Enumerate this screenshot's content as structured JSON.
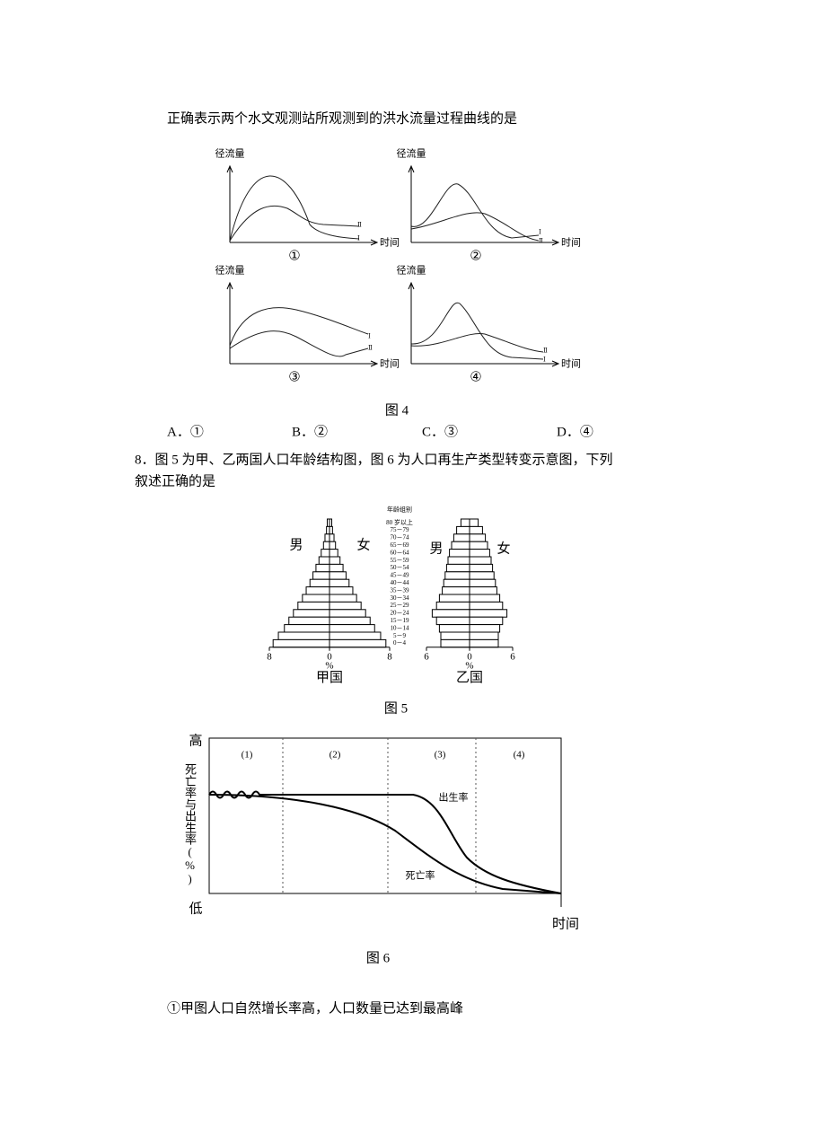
{
  "question7": {
    "stem": "正确表示两个水文观测站所观测到的洪水流量过程曲线的是",
    "figure4": {
      "graphs": [
        {
          "y_label": "径流量",
          "x_label": "时间",
          "curve_labels": [
            "Ⅱ",
            "Ⅰ"
          ],
          "caption": "①"
        },
        {
          "y_label": "径流量",
          "x_label": "时间",
          "curve_labels": [
            "Ⅰ",
            "Ⅱ"
          ],
          "caption": "②"
        },
        {
          "y_label": "径流量",
          "x_label": "时间",
          "curve_labels": [
            "Ⅰ",
            "Ⅱ"
          ],
          "caption": "③"
        },
        {
          "y_label": "径流量",
          "x_label": "时间",
          "curve_labels": [
            "Ⅱ",
            "Ⅰ"
          ],
          "caption": "④"
        }
      ],
      "caption": "图 4"
    },
    "options": [
      "A．①",
      "B．②",
      "C．③",
      "D．④"
    ]
  },
  "question8": {
    "stem_lines": [
      "8．图 5 为甲、乙两国人口年龄结构图，图 6 为人口再生产类型转变示意图，下列",
      "叙述正确的是"
    ],
    "figure5": {
      "age_header": "年龄组别",
      "age_groups": [
        "80 岁以上",
        "75－79",
        "70－74",
        "65－69",
        "60－64",
        "55－59",
        "50－54",
        "45－49",
        "40－44",
        "35－39",
        "30－34",
        "25－29",
        "20－24",
        "15－19",
        "10－14",
        "5－9",
        "0－4"
      ],
      "pyramids": [
        {
          "name": "甲国",
          "male_label": "男",
          "female_label": "女",
          "xticks": [
            8,
            0,
            8
          ],
          "axis_unit": "%",
          "male": [
            0.3,
            0.4,
            0.6,
            0.8,
            1.1,
            1.4,
            1.8,
            2.2,
            2.6,
            3.1,
            3.6,
            4.2,
            4.8,
            5.4,
            6.0,
            6.8,
            7.5
          ],
          "female": [
            0.3,
            0.4,
            0.6,
            0.8,
            1.1,
            1.4,
            1.8,
            2.2,
            2.6,
            3.1,
            3.6,
            4.2,
            4.8,
            5.4,
            6.0,
            6.8,
            7.5
          ]
        },
        {
          "name": "乙国",
          "male_label": "男",
          "female_label": "女",
          "xticks": [
            6,
            0,
            6
          ],
          "axis_unit": "%",
          "male": [
            1.2,
            1.8,
            2.2,
            2.5,
            2.8,
            3.0,
            3.2,
            3.4,
            3.6,
            3.8,
            4.2,
            4.6,
            5.2,
            4.6,
            4.2,
            4.0,
            4.0
          ],
          "female": [
            1.2,
            1.8,
            2.2,
            2.5,
            2.8,
            3.0,
            3.2,
            3.4,
            3.6,
            3.8,
            4.2,
            4.6,
            5.2,
            4.6,
            4.2,
            4.0,
            4.0
          ]
        }
      ],
      "caption": "图 5"
    },
    "figure6": {
      "y_label": "死亡率与出生率(%)",
      "y_high": "高",
      "y_low": "低",
      "x_label": "时间",
      "stages": [
        "(1)",
        "(2)",
        "(3)",
        "(4)"
      ],
      "birth_label": "出生率",
      "death_label": "死亡率",
      "caption": "图 6"
    },
    "statement_1": "①甲图人口自然增长率高，人口数量已达到最高峰"
  }
}
